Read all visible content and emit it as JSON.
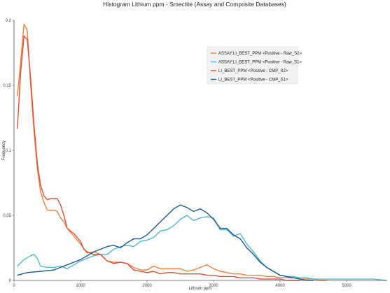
{
  "chart_data": {
    "type": "line",
    "title": "Histogram Lithium ppm - Smectite (Assay and Composite Databases)",
    "xlabel": "Lithium ppm",
    "ylabel": "Frequency",
    "xlim": [
      0,
      5600
    ],
    "ylim": [
      0,
      0.2
    ],
    "xticks": [
      "0",
      "1000",
      "2000",
      "3000",
      "4000",
      "5000"
    ],
    "xtick_values": [
      0,
      1000,
      2000,
      3000,
      4000,
      5000
    ],
    "yticks": [
      "0",
      "0.05",
      "0.1",
      "0.15",
      "0.2"
    ],
    "ytick_values": [
      0,
      0.05,
      0.1,
      0.15,
      0.2
    ],
    "grid": false,
    "legend_position": "top-right",
    "series": [
      {
        "name": "ASSAY:LI_BEST_PPM <Positive - Raw_S2>",
        "color": "#f07f3a",
        "x": [
          50,
          100,
          150,
          200,
          250,
          300,
          350,
          400,
          450,
          500,
          550,
          600,
          650,
          700,
          750,
          800,
          900,
          1000,
          1100,
          1200,
          1300,
          1400,
          1500,
          1600,
          1700,
          1800,
          1900,
          2000,
          2100,
          2200,
          2300,
          2400,
          2500,
          2600,
          2700,
          2800,
          2900,
          3000,
          3100,
          3200,
          3300,
          3400,
          3500,
          3600,
          3700,
          3800,
          3900,
          4000,
          4100,
          4200,
          4300,
          4400,
          4500,
          4600,
          4700
        ],
        "y": [
          0.142,
          0.168,
          0.197,
          0.192,
          0.15,
          0.115,
          0.086,
          0.068,
          0.06,
          0.054,
          0.054,
          0.054,
          0.053,
          0.048,
          0.045,
          0.04,
          0.034,
          0.028,
          0.021,
          0.022,
          0.02,
          0.015,
          0.014,
          0.014,
          0.013,
          0.01,
          0.008,
          0.008,
          0.011,
          0.009,
          0.009,
          0.009,
          0.009,
          0.007,
          0.008,
          0.01,
          0.012,
          0.009,
          0.007,
          0.006,
          0.005,
          0.005,
          0.004,
          0.004,
          0.004,
          0.003,
          0.003,
          0.002,
          0.002,
          0.002,
          0.001,
          0.001,
          0.001,
          0.0,
          0.0
        ]
      },
      {
        "name": "ASSAY:LI_BEST_PPM <Positive - Raw_S1>",
        "color": "#4fb6d6",
        "x": [
          50,
          150,
          250,
          300,
          350,
          400,
          500,
          600,
          700,
          800,
          900,
          1000,
          1100,
          1200,
          1300,
          1400,
          1500,
          1600,
          1700,
          1800,
          1900,
          2000,
          2100,
          2200,
          2300,
          2400,
          2500,
          2600,
          2700,
          2800,
          2900,
          3000,
          3100,
          3200,
          3300,
          3400,
          3500,
          3600,
          3700,
          3800,
          3900,
          4000,
          4100,
          4200,
          4300,
          4400,
          4500,
          4600,
          4700,
          4800,
          4900,
          5000,
          5200,
          5400,
          5600
        ],
        "y": [
          0.011,
          0.016,
          0.019,
          0.02,
          0.017,
          0.011,
          0.01,
          0.01,
          0.011,
          0.009,
          0.012,
          0.015,
          0.017,
          0.019,
          0.02,
          0.02,
          0.024,
          0.026,
          0.027,
          0.026,
          0.03,
          0.031,
          0.033,
          0.038,
          0.039,
          0.042,
          0.047,
          0.05,
          0.046,
          0.048,
          0.049,
          0.048,
          0.039,
          0.039,
          0.034,
          0.036,
          0.028,
          0.022,
          0.015,
          0.01,
          0.007,
          0.004,
          0.003,
          0.003,
          0.002,
          0.002,
          0.001,
          0.001,
          0.001,
          0.001,
          0.001,
          0.001,
          0.001,
          0.001,
          0.0
        ]
      },
      {
        "name": "LI_BEST_PPM <Positive - CMP_S2>",
        "color": "#d9503f",
        "x": [
          50,
          100,
          150,
          200,
          250,
          300,
          350,
          400,
          450,
          500,
          550,
          600,
          650,
          700,
          750,
          800,
          900,
          1000,
          1050,
          1100,
          1200,
          1300,
          1400,
          1500,
          1600,
          1700,
          1800,
          1900,
          2000,
          2100,
          2200,
          2300,
          2400,
          2500,
          2600,
          2700,
          2800,
          2900,
          3000,
          3100,
          3200,
          3300,
          3400,
          3500,
          3600,
          3700,
          3800,
          3900,
          4000,
          4100,
          4200,
          4300
        ],
        "y": [
          0.117,
          0.16,
          0.188,
          0.185,
          0.155,
          0.12,
          0.09,
          0.073,
          0.065,
          0.062,
          0.063,
          0.063,
          0.063,
          0.058,
          0.05,
          0.04,
          0.036,
          0.03,
          0.024,
          0.022,
          0.02,
          0.02,
          0.015,
          0.013,
          0.014,
          0.013,
          0.008,
          0.007,
          0.006,
          0.007,
          0.005,
          0.006,
          0.006,
          0.005,
          0.005,
          0.005,
          0.005,
          0.004,
          0.004,
          0.003,
          0.003,
          0.003,
          0.002,
          0.002,
          0.002,
          0.001,
          0.001,
          0.001,
          0.001,
          0.0,
          0.0,
          0.0
        ]
      },
      {
        "name": "LI_BEST_PPM <Positive - CMP_S1>",
        "color": "#1f5a8a",
        "x": [
          50,
          200,
          400,
          600,
          700,
          800,
          900,
          1000,
          1100,
          1200,
          1300,
          1400,
          1500,
          1600,
          1700,
          1800,
          1900,
          2000,
          2100,
          2200,
          2300,
          2400,
          2500,
          2600,
          2700,
          2800,
          2900,
          3000,
          3100,
          3200,
          3300,
          3400,
          3500,
          3600,
          3700,
          3800,
          3900,
          4000,
          4100,
          4200,
          4300,
          4400,
          4500
        ],
        "y": [
          0.004,
          0.006,
          0.007,
          0.008,
          0.01,
          0.012,
          0.014,
          0.016,
          0.019,
          0.022,
          0.024,
          0.026,
          0.027,
          0.025,
          0.029,
          0.032,
          0.032,
          0.035,
          0.04,
          0.045,
          0.05,
          0.055,
          0.058,
          0.056,
          0.053,
          0.055,
          0.052,
          0.047,
          0.04,
          0.04,
          0.035,
          0.032,
          0.025,
          0.02,
          0.014,
          0.01,
          0.007,
          0.004,
          0.003,
          0.002,
          0.001,
          0.0,
          0.0
        ]
      }
    ]
  }
}
